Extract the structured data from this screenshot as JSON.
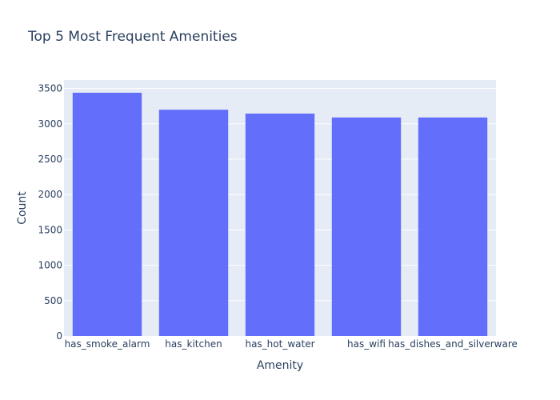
{
  "chart_data": {
    "type": "bar",
    "title": "Top 5 Most Frequent Amenities",
    "xlabel": "Amenity",
    "ylabel": "Count",
    "categories": [
      "has_smoke_alarm",
      "has_kitchen",
      "has_hot_water",
      "has_wifi",
      "has_dishes_and_silverware"
    ],
    "values": [
      3440,
      3200,
      3145,
      3090,
      3090
    ],
    "ylim": [
      0,
      3620
    ],
    "yticks": [
      0,
      500,
      1000,
      1500,
      2000,
      2500,
      3000,
      3500
    ],
    "grid": true,
    "legend": "none",
    "colors": {
      "bar": "#636efa",
      "plot_bg": "#e5ecf6",
      "grid": "#ffffff",
      "text": "#2a3f5f"
    }
  }
}
